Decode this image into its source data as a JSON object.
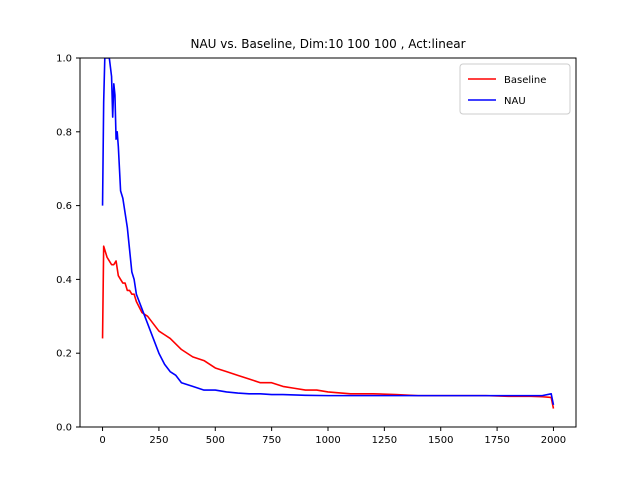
{
  "chart_data": {
    "type": "line",
    "title": "NAU vs. Baseline, Dim:10 100 100 , Act:linear",
    "xlabel": "",
    "ylabel": "",
    "xlim": [
      -100,
      2100
    ],
    "ylim": [
      0,
      1
    ],
    "xticks": [
      0,
      250,
      500,
      750,
      1000,
      1250,
      1500,
      1750,
      2000
    ],
    "yticks": [
      0.0,
      0.2,
      0.4,
      0.6,
      0.8,
      1.0
    ],
    "xtick_labels": [
      "0",
      "250",
      "500",
      "750",
      "1000",
      "1250",
      "1500",
      "1750",
      "2000"
    ],
    "ytick_labels": [
      "0.0",
      "0.2",
      "0.4",
      "0.6",
      "0.8",
      "1.0"
    ],
    "grid": false,
    "legend_position": "top-right",
    "series": [
      {
        "name": "Baseline",
        "color": "#ff0000",
        "x": [
          0,
          5,
          10,
          20,
          30,
          40,
          50,
          60,
          70,
          80,
          90,
          100,
          110,
          120,
          130,
          140,
          150,
          175,
          200,
          225,
          250,
          275,
          300,
          350,
          400,
          450,
          500,
          550,
          600,
          650,
          700,
          750,
          800,
          850,
          900,
          950,
          1000,
          1100,
          1200,
          1300,
          1400,
          1500,
          1600,
          1700,
          1800,
          1900,
          1950,
          1990,
          2000
        ],
        "y": [
          0.24,
          0.49,
          0.48,
          0.46,
          0.45,
          0.44,
          0.44,
          0.45,
          0.41,
          0.4,
          0.39,
          0.39,
          0.37,
          0.37,
          0.36,
          0.36,
          0.34,
          0.31,
          0.3,
          0.28,
          0.26,
          0.25,
          0.24,
          0.21,
          0.19,
          0.18,
          0.16,
          0.15,
          0.14,
          0.13,
          0.12,
          0.12,
          0.11,
          0.105,
          0.1,
          0.1,
          0.095,
          0.09,
          0.09,
          0.088,
          0.085,
          0.085,
          0.085,
          0.085,
          0.083,
          0.083,
          0.082,
          0.08,
          0.05
        ]
      },
      {
        "name": "NAU",
        "color": "#0000ff",
        "x": [
          0,
          5,
          10,
          20,
          30,
          40,
          45,
          50,
          55,
          60,
          65,
          70,
          80,
          90,
          100,
          110,
          120,
          130,
          140,
          150,
          175,
          200,
          225,
          250,
          275,
          300,
          325,
          350,
          400,
          450,
          500,
          550,
          600,
          650,
          700,
          750,
          800,
          900,
          1000,
          1100,
          1200,
          1300,
          1400,
          1500,
          1600,
          1700,
          1800,
          1900,
          1950,
          1990,
          2000
        ],
        "y": [
          0.6,
          0.88,
          1.0,
          1.0,
          1.0,
          0.95,
          0.84,
          0.93,
          0.9,
          0.78,
          0.8,
          0.76,
          0.64,
          0.62,
          0.58,
          0.54,
          0.48,
          0.42,
          0.4,
          0.36,
          0.32,
          0.28,
          0.24,
          0.2,
          0.17,
          0.15,
          0.14,
          0.12,
          0.11,
          0.1,
          0.1,
          0.095,
          0.092,
          0.09,
          0.09,
          0.088,
          0.088,
          0.086,
          0.085,
          0.085,
          0.085,
          0.085,
          0.085,
          0.085,
          0.085,
          0.085,
          0.085,
          0.085,
          0.085,
          0.09,
          0.06
        ]
      }
    ]
  }
}
